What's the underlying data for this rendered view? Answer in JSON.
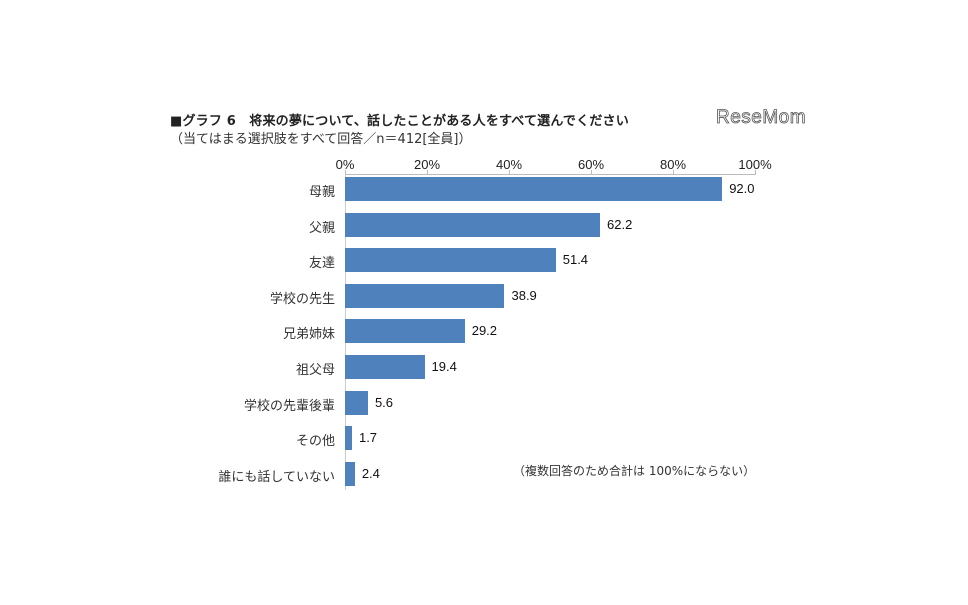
{
  "header": {
    "title": "■グラフ 6　将来の夢について、話したことがある人をすべて選んでください",
    "subtitle": "（当てはまる選択肢をすべて回答／n＝412[全員]）",
    "logo": "ReseMom"
  },
  "axis": {
    "ticks": [
      "0%",
      "20%",
      "40%",
      "60%",
      "80%",
      "100%"
    ]
  },
  "note": "（複数回答のため合計は 100%にならない）",
  "chart_data": {
    "type": "bar",
    "orientation": "horizontal",
    "title": "■グラフ 6　将来の夢について、話したことがある人をすべて選んでください",
    "subtitle": "（当てはまる選択肢をすべて回答／n＝412[全員]）",
    "categories": [
      "母親",
      "父親",
      "友達",
      "学校の先生",
      "兄弟姉妹",
      "祖父母",
      "学校の先輩後輩",
      "その他",
      "誰にも話していない"
    ],
    "values": [
      92.0,
      62.2,
      51.4,
      38.9,
      29.2,
      19.4,
      5.6,
      1.7,
      2.4
    ],
    "value_labels": [
      "92.0",
      "62.2",
      "51.4",
      "38.9",
      "29.2",
      "19.4",
      "5.6",
      "1.7",
      "2.4"
    ],
    "xlabel": "",
    "ylabel": "",
    "xlim": [
      0,
      100
    ],
    "x_ticks": [
      "0%",
      "20%",
      "40%",
      "60%",
      "80%",
      "100%"
    ],
    "x_axis_position": "top",
    "grid": false,
    "legend": null,
    "bar_color": "#4f81bd",
    "annotation": "（複数回答のため合計は 100%にならない）"
  }
}
